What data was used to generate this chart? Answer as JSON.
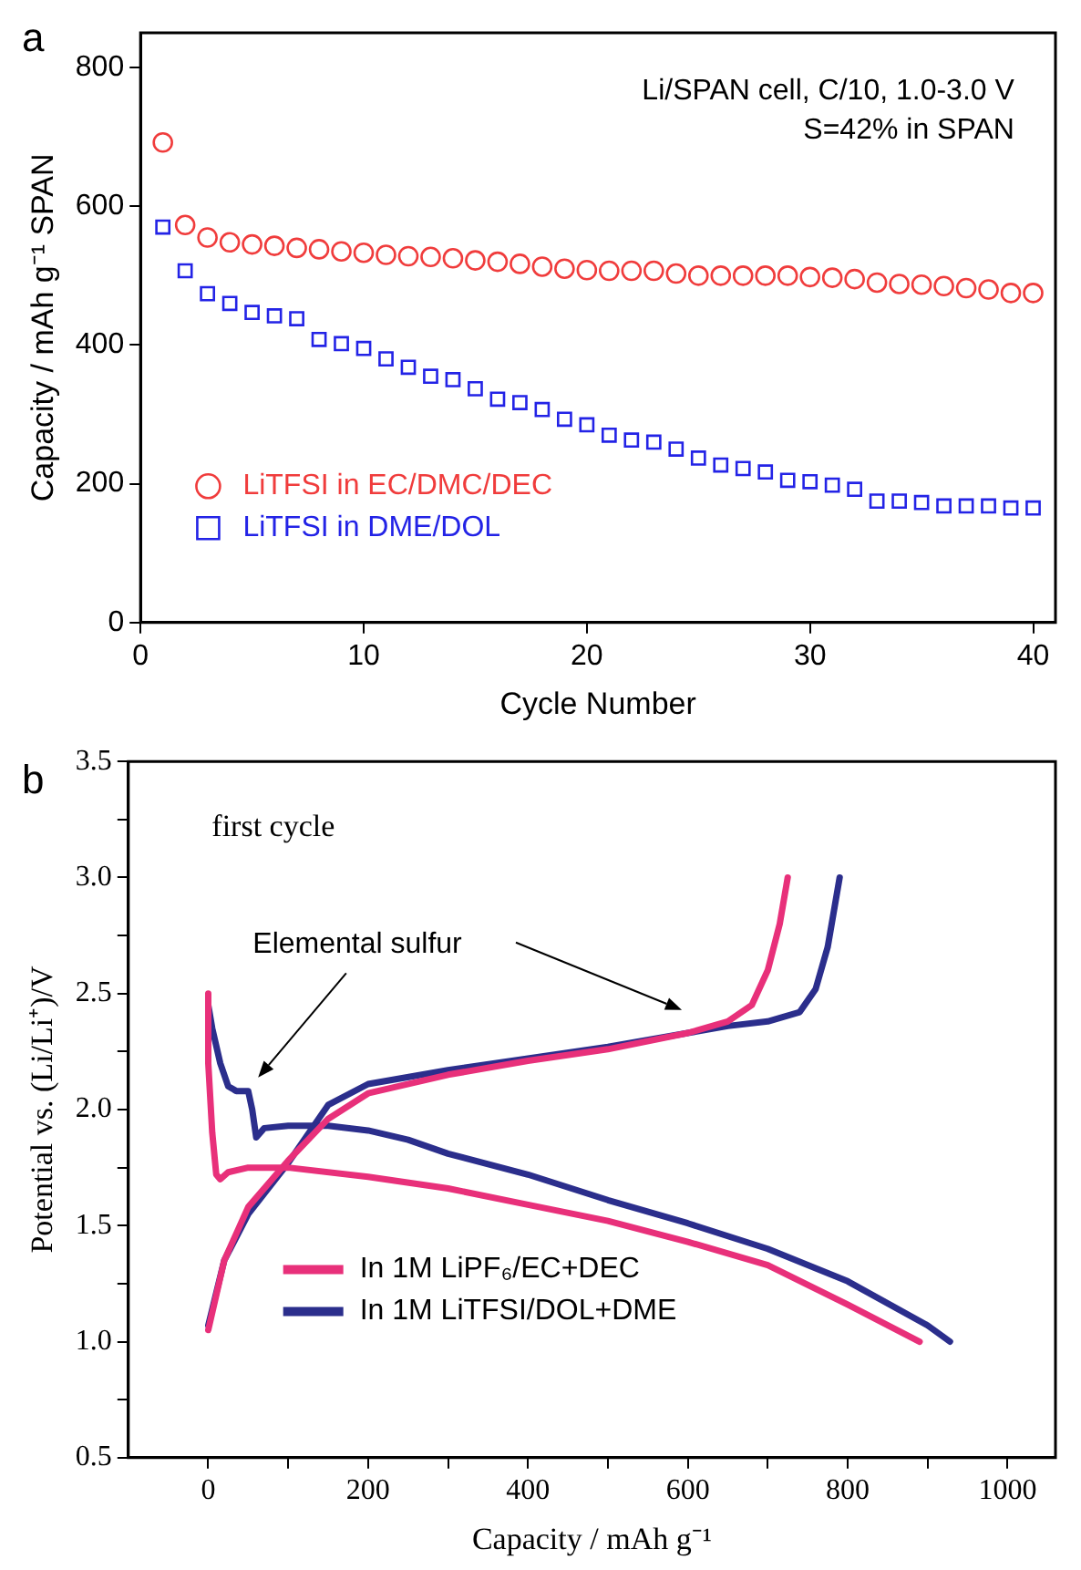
{
  "chart_data": [
    {
      "type": "scatter",
      "xlabel": "Cycle Number",
      "ylabel": "Capacity / mAh g⁻¹ SPAN",
      "x": [
        1,
        2,
        3,
        4,
        5,
        6,
        7,
        8,
        9,
        10,
        11,
        12,
        13,
        14,
        15,
        16,
        17,
        18,
        19,
        20,
        21,
        22,
        23,
        24,
        25,
        26,
        27,
        28,
        29,
        30,
        31,
        32,
        33,
        34,
        35,
        36,
        37,
        38,
        39,
        40
      ],
      "series": [
        {
          "name": "LiTFSI in EC/DMC/DEC",
          "color": "#f03c3c",
          "marker": "circle",
          "values": [
            692,
            573,
            555,
            548,
            545,
            543,
            540,
            538,
            535,
            533,
            530,
            528,
            527,
            525,
            522,
            520,
            517,
            513,
            510,
            508,
            507,
            507,
            507,
            503,
            500,
            500,
            500,
            500,
            500,
            498,
            497,
            495,
            490,
            488,
            487,
            485,
            482,
            480,
            475,
            475
          ]
        },
        {
          "name": "LiTFSI in DME/DOL",
          "color": "#2323e6",
          "marker": "square",
          "values": [
            570,
            507,
            474,
            460,
            447,
            442,
            438,
            408,
            402,
            395,
            380,
            368,
            355,
            350,
            337,
            322,
            317,
            307,
            293,
            285,
            270,
            263,
            260,
            250,
            237,
            227,
            222,
            217,
            205,
            203,
            198,
            192,
            175,
            175,
            173,
            168,
            168,
            168,
            165,
            165
          ]
        }
      ],
      "xlim": [
        0,
        41
      ],
      "xticks": [
        0,
        10,
        20,
        30,
        40
      ],
      "ylim": [
        0,
        850
      ],
      "yticks": [
        0,
        200,
        400,
        600,
        800
      ],
      "legend": "bottom left",
      "annotations": [
        "a",
        "Li/SPAN cell, C/10, 1.0-3.0 V",
        "S=42% in SPAN"
      ]
    },
    {
      "type": "line",
      "xlabel": "Capacity / mAh g⁻¹",
      "ylabel": "Potential vs. (Li/Li⁺)/V",
      "marker": "none",
      "line_style": "solid",
      "series": [
        {
          "name": "In 1M LiPF₆/EC+DEC",
          "color": "#e8307a",
          "x": [
            0,
            0,
            5,
            10,
            15,
            25,
            50,
            100,
            200,
            300,
            400,
            500,
            600,
            700,
            800,
            890
          ],
          "values": [
            2.5,
            2.2,
            1.9,
            1.72,
            1.7,
            1.73,
            1.75,
            1.75,
            1.71,
            1.66,
            1.59,
            1.52,
            1.43,
            1.33,
            1.16,
            1.0
          ]
        },
        {
          "color": "#e8307a",
          "x": [
            0,
            20,
            50,
            100,
            150,
            200,
            300,
            400,
            500,
            600,
            650,
            680,
            700,
            715,
            725
          ],
          "values": [
            1.05,
            1.35,
            1.58,
            1.78,
            1.96,
            2.07,
            2.15,
            2.21,
            2.26,
            2.33,
            2.38,
            2.45,
            2.6,
            2.8,
            3.0
          ]
        },
        {
          "name": "In 1M LiTFSI/DOL+DME",
          "color": "#2b2e8c",
          "x": [
            0,
            5,
            15,
            25,
            35,
            50,
            55,
            60,
            70,
            100,
            150,
            200,
            250,
            300,
            400,
            500,
            600,
            700,
            800,
            900,
            928
          ],
          "values": [
            2.45,
            2.35,
            2.2,
            2.1,
            2.08,
            2.08,
            2.0,
            1.88,
            1.92,
            1.93,
            1.93,
            1.91,
            1.87,
            1.81,
            1.72,
            1.61,
            1.51,
            1.4,
            1.26,
            1.07,
            1.0
          ]
        },
        {
          "color": "#2b2e8c",
          "x": [
            0,
            20,
            50,
            100,
            150,
            200,
            300,
            400,
            500,
            600,
            650,
            700,
            740,
            760,
            775,
            790
          ],
          "values": [
            1.07,
            1.35,
            1.55,
            1.77,
            2.02,
            2.11,
            2.17,
            2.22,
            2.27,
            2.33,
            2.36,
            2.38,
            2.42,
            2.52,
            2.7,
            3.0
          ]
        }
      ],
      "xlim": [
        -100,
        1060
      ],
      "xticks": [
        0,
        {
          "value": 100,
          "label": null
        },
        200,
        {
          "value": 300,
          "label": null
        },
        400,
        {
          "value": 500,
          "label": null
        },
        600,
        {
          "value": 700,
          "label": null
        },
        800,
        {
          "value": 900,
          "label": null
        },
        1000
      ],
      "ylim": [
        0.5,
        3.5
      ],
      "yticks": [
        {
          "value": 0.5,
          "label": "0.5"
        },
        {
          "value": 0.75,
          "label": null
        },
        {
          "value": 1,
          "label": "1.0"
        },
        {
          "value": 1.25,
          "label": null
        },
        {
          "value": 1.5,
          "label": "1.5"
        },
        {
          "value": 1.75,
          "label": null
        },
        {
          "value": 2,
          "label": "2.0"
        },
        {
          "value": 2.25,
          "label": null
        },
        {
          "value": 2.5,
          "label": "2.5"
        },
        {
          "value": 2.75,
          "label": null
        },
        {
          "value": 3,
          "label": "3.0"
        },
        {
          "value": 3.25,
          "label": null
        },
        {
          "value": 3.5,
          "label": "3.5"
        }
      ],
      "legend": "bottom left",
      "annotations": [
        "b",
        "first cycle",
        "Elemental sulfur"
      ]
    }
  ]
}
